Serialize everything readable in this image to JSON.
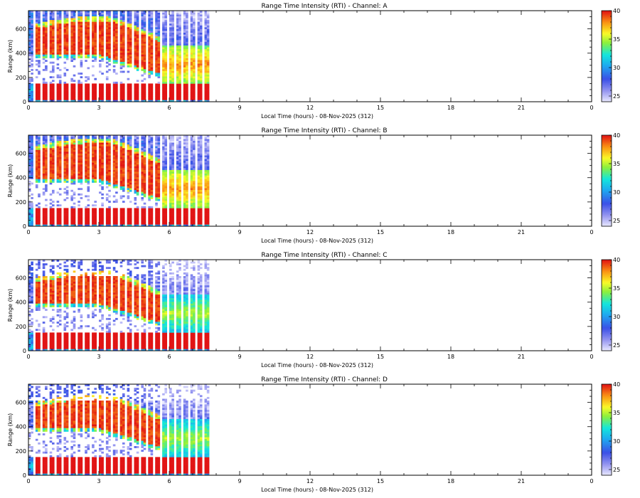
{
  "chart_data": [
    {
      "type": "heatmap",
      "title": "Range Time Intensity (RTI) - Channel: A",
      "xlabel": "Local Time (hours) - 08-Nov-2025 (312)",
      "ylabel": "Range (km)",
      "xlim": [
        0,
        24
      ],
      "ylim": [
        0,
        750
      ],
      "x_ticks": [
        "0",
        "3",
        "6",
        "9",
        "12",
        "15",
        "18",
        "21",
        "0"
      ],
      "y_ticks": [
        "0",
        "200",
        "400",
        "600"
      ],
      "colorbar": {
        "min": 24,
        "max": 40,
        "ticks": [
          "25",
          "30",
          "35",
          "40"
        ]
      },
      "data_end_hour": 7.8,
      "bands": [
        {
          "name": "low-range-strong",
          "range_km": [
            0,
            150
          ],
          "time_h": [
            0,
            7.8
          ],
          "level": 40
        },
        {
          "name": "mid-range-layer",
          "range_km": [
            380,
            600
          ],
          "time_h": [
            0.3,
            5.5
          ],
          "level": 40
        },
        {
          "name": "upper-noise",
          "range_km": [
            600,
            750
          ],
          "time_h": [
            0,
            7.8
          ],
          "level": 26
        },
        {
          "name": "late-diffuse",
          "range_km": [
            150,
            450
          ],
          "time_h": [
            5.5,
            7.8
          ],
          "level": 34
        }
      ]
    },
    {
      "type": "heatmap",
      "title": "Range Time Intensity (RTI) - Channel: B",
      "xlabel": "Local Time (hours) - 08-Nov-2025 (312)",
      "ylabel": "Range (km)",
      "xlim": [
        0,
        24
      ],
      "ylim": [
        0,
        750
      ],
      "x_ticks": [
        "0",
        "3",
        "6",
        "9",
        "12",
        "15",
        "18",
        "21",
        "0"
      ],
      "y_ticks": [
        "0",
        "200",
        "400",
        "600"
      ],
      "colorbar": {
        "min": 24,
        "max": 40,
        "ticks": [
          "25",
          "30",
          "35",
          "40"
        ]
      },
      "data_end_hour": 7.8,
      "bands": [
        {
          "name": "low-range-strong",
          "range_km": [
            0,
            150
          ],
          "time_h": [
            0,
            7.8
          ],
          "level": 40
        },
        {
          "name": "mid-range-layer",
          "range_km": [
            380,
            620
          ],
          "time_h": [
            0.3,
            5.5
          ],
          "level": 40
        },
        {
          "name": "upper-noise",
          "range_km": [
            600,
            750
          ],
          "time_h": [
            0,
            7.8
          ],
          "level": 26
        },
        {
          "name": "late-diffuse",
          "range_km": [
            150,
            450
          ],
          "time_h": [
            5.5,
            7.8
          ],
          "level": 34
        }
      ]
    },
    {
      "type": "heatmap",
      "title": "Range Time Intensity (RTI) - Channel: C",
      "xlabel": "Local Time (hours) - 08-Nov-2025 (312)",
      "ylabel": "Range (km)",
      "xlim": [
        0,
        24
      ],
      "ylim": [
        0,
        750
      ],
      "x_ticks": [
        "0",
        "3",
        "6",
        "9",
        "12",
        "15",
        "18",
        "21",
        "0"
      ],
      "y_ticks": [
        "0",
        "200",
        "400",
        "600"
      ],
      "colorbar": {
        "min": 24,
        "max": 40,
        "ticks": [
          "25",
          "30",
          "35",
          "40"
        ]
      },
      "data_end_hour": 7.8,
      "bands": [
        {
          "name": "low-range-strong",
          "range_km": [
            0,
            150
          ],
          "time_h": [
            0,
            7.8
          ],
          "level": 40
        },
        {
          "name": "mid-range-layer",
          "range_km": [
            380,
            560
          ],
          "time_h": [
            0.3,
            5.5
          ],
          "level": 40
        },
        {
          "name": "upper-noise",
          "range_km": [
            560,
            750
          ],
          "time_h": [
            0,
            7.8
          ],
          "level": 25
        },
        {
          "name": "late-diffuse",
          "range_km": [
            150,
            450
          ],
          "time_h": [
            5.5,
            7.8
          ],
          "level": 31
        }
      ]
    },
    {
      "type": "heatmap",
      "title": "Range Time Intensity (RTI) - Channel: D",
      "xlabel": "Local Time (hours) - 08-Nov-2025 (312)",
      "ylabel": "Range (km)",
      "xlim": [
        0,
        24
      ],
      "ylim": [
        0,
        750
      ],
      "x_ticks": [
        "0",
        "3",
        "6",
        "9",
        "12",
        "15",
        "18",
        "21",
        "0"
      ],
      "y_ticks": [
        "0",
        "200",
        "400",
        "600"
      ],
      "colorbar": {
        "min": 24,
        "max": 40,
        "ticks": [
          "25",
          "30",
          "35",
          "40"
        ]
      },
      "data_end_hour": 7.8,
      "bands": [
        {
          "name": "low-range-strong",
          "range_km": [
            0,
            150
          ],
          "time_h": [
            0,
            7.8
          ],
          "level": 40
        },
        {
          "name": "mid-range-layer",
          "range_km": [
            380,
            560
          ],
          "time_h": [
            0.3,
            5.5
          ],
          "level": 40
        },
        {
          "name": "upper-noise",
          "range_km": [
            560,
            750
          ],
          "time_h": [
            0,
            7.8
          ],
          "level": 25
        },
        {
          "name": "late-diffuse",
          "range_km": [
            150,
            450
          ],
          "time_h": [
            5.5,
            7.8
          ],
          "level": 31
        }
      ]
    }
  ]
}
